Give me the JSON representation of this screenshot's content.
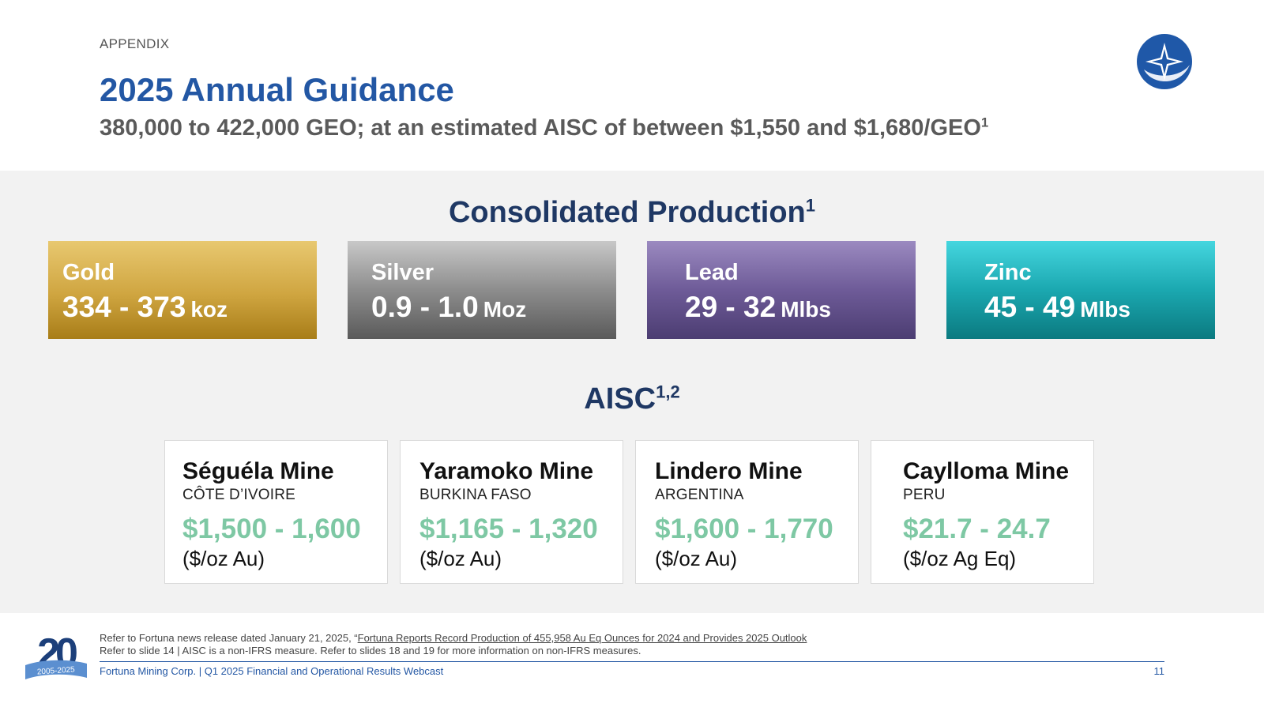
{
  "header": {
    "eyebrow": "APPENDIX",
    "title": "2025 Annual Guidance",
    "subtitle": "380,000 to 422,000 GEO; at an estimated AISC of between $1,550 and $1,680/GEO",
    "subtitle_sup": "1",
    "logo_icon": "fortuna-star-logo-icon"
  },
  "production": {
    "heading": "Consolidated Production",
    "heading_sup": "1",
    "metals": [
      {
        "name": "Gold",
        "range": "334 - 373",
        "unit": "koz",
        "color": "#cfa540"
      },
      {
        "name": "Silver",
        "range": "0.9 - 1.0",
        "unit": "Moz",
        "color": "#8d8d8d"
      },
      {
        "name": "Lead",
        "range": "29 - 32",
        "unit": "Mlbs",
        "color": "#6e5b98"
      },
      {
        "name": "Zinc",
        "range": "45 - 49",
        "unit": "Mlbs",
        "color": "#1ba8b0"
      }
    ]
  },
  "aisc": {
    "heading": "AISC",
    "heading_sup": "1,2",
    "cost_color": "#7ec8a4",
    "mines": [
      {
        "name": "Séguéla Mine",
        "country": "CÔTE D’IVOIRE",
        "cost": "$1,500 - 1,600",
        "unit": "($/oz Au)"
      },
      {
        "name": "Yaramoko Mine",
        "country": "BURKINA FASO",
        "cost": "$1,165 - 1,320",
        "unit": "($/oz Au)"
      },
      {
        "name": "Lindero Mine",
        "country": "ARGENTINA",
        "cost": "$1,600 - 1,770",
        "unit": "($/oz Au)"
      },
      {
        "name": "Caylloma Mine",
        "country": "PERU",
        "cost": "$21.7 - 24.7",
        "unit": "($/oz Ag Eq)"
      }
    ]
  },
  "footer": {
    "anniversary_badge": "20",
    "anniversary_years": "2005-2025",
    "note1_prefix": "Refer to Fortuna news release dated January 21, 2025, “",
    "note1_link": "Fortuna Reports Record Production of 455,958 Au Eq Ounces for 2024 and Provides 2025 Outlook",
    "note2": "Refer to slide 14 | AISC is a non-IFRS measure.  Refer to slides 18 and 19 for more information on non-IFRS measures.",
    "company": "Fortuna Mining Corp. | Q1 2025 Financial and Operational Results Webcast",
    "page_number": "11"
  }
}
